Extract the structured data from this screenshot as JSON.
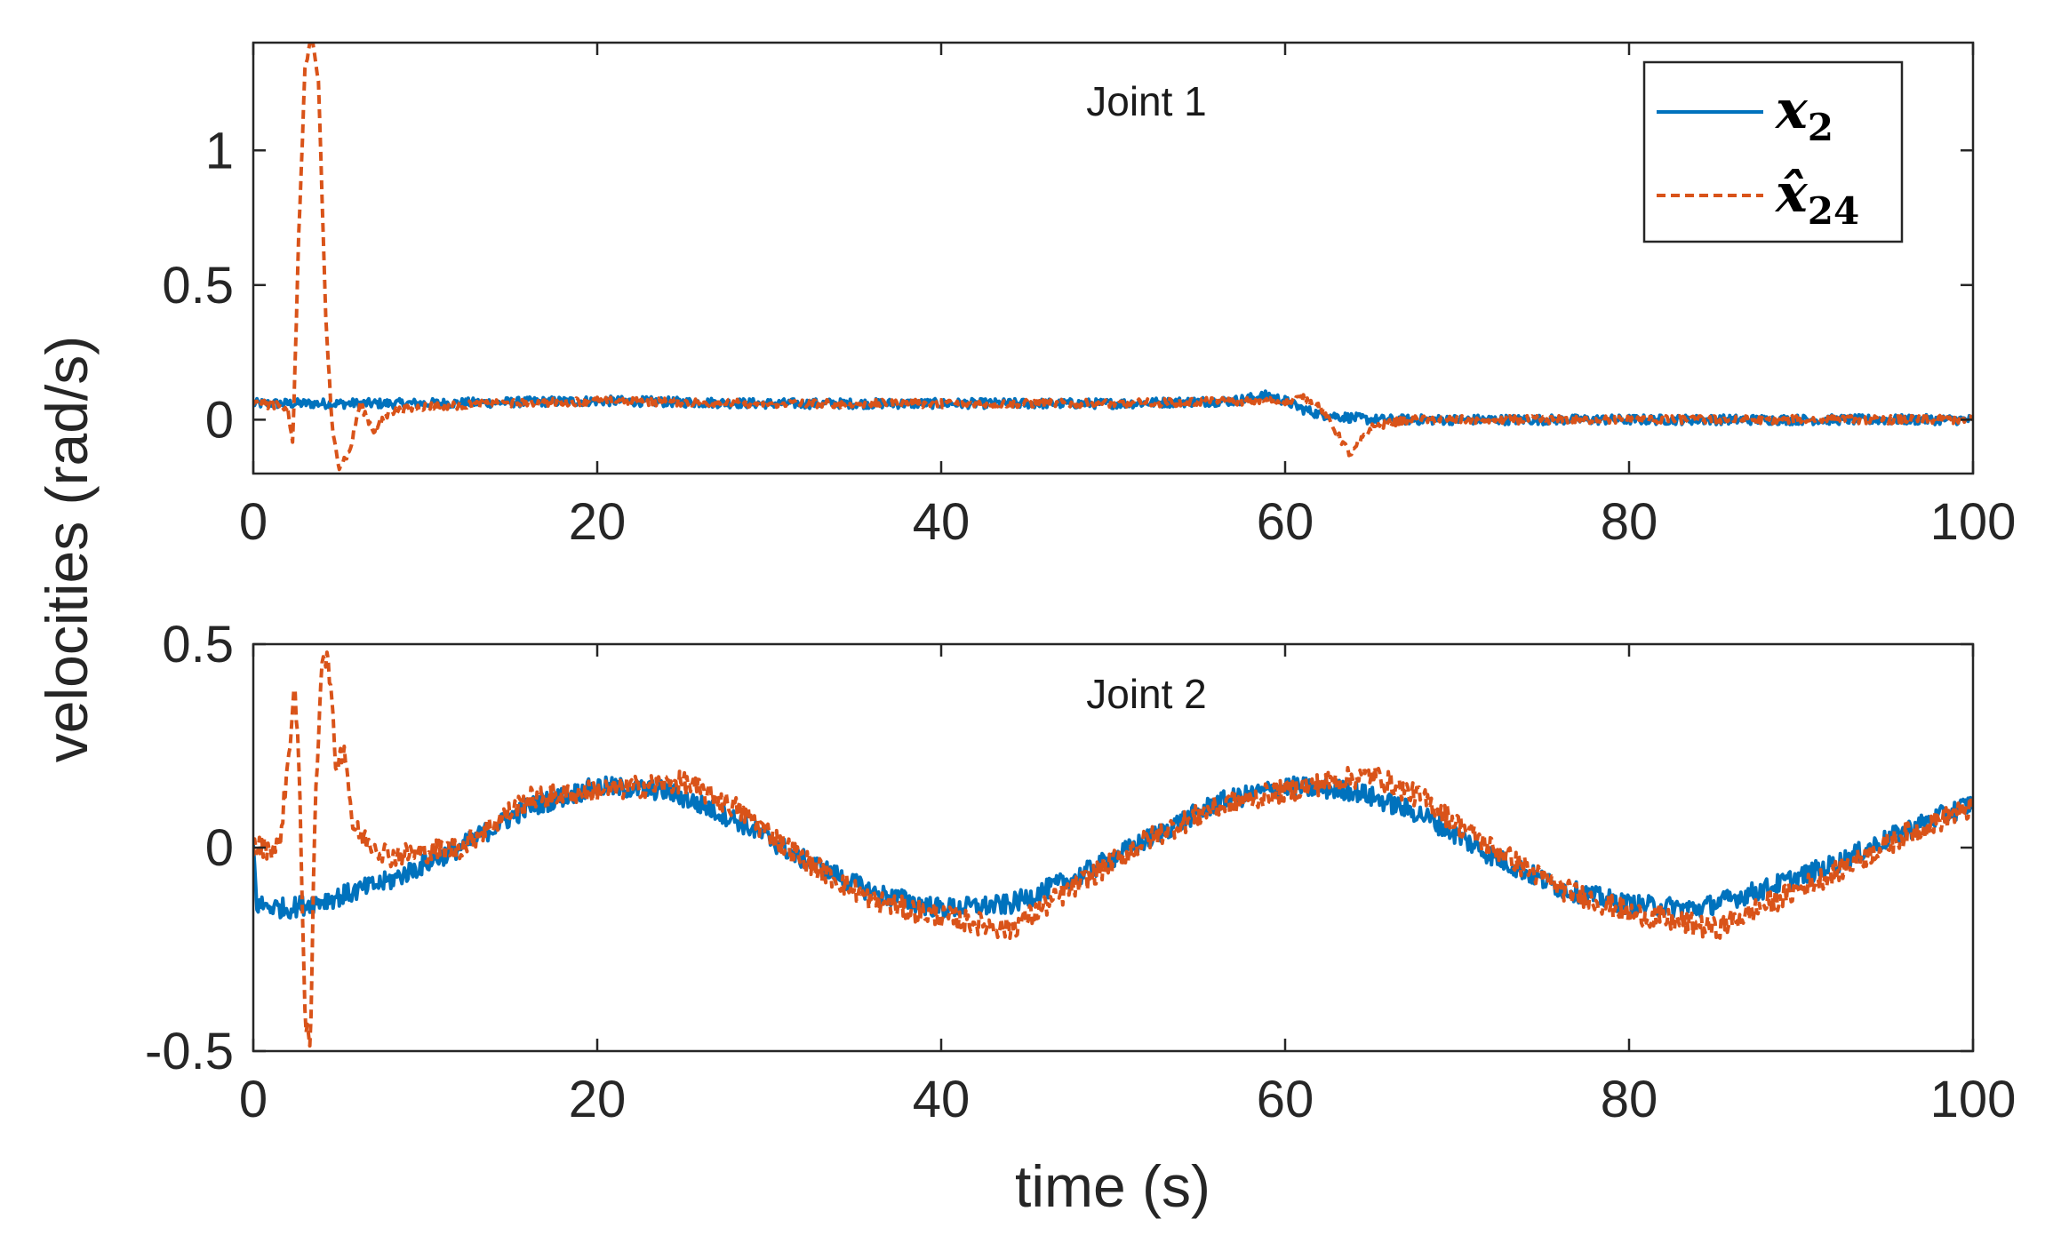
{
  "chart_data": [
    {
      "type": "line",
      "title": "Joint 1",
      "xlabel": "time (s)",
      "ylabel": "velocities (rad/s)",
      "xlim": [
        0,
        100
      ],
      "ylim": [
        -0.2,
        1.4
      ],
      "xticks": [
        0,
        20,
        40,
        60,
        80,
        100
      ],
      "xtick_labels": [
        "0",
        "20",
        "40",
        "60",
        "80",
        "100"
      ],
      "yticks": [
        0,
        0.5,
        1
      ],
      "ytick_labels": [
        "0",
        "0.5",
        "1"
      ],
      "legend": {
        "position": "top-right",
        "entries": [
          {
            "base": "x",
            "sub": "2",
            "series": "x2"
          },
          {
            "base": "x̂",
            "sub": "24",
            "series": "xhat24"
          }
        ]
      },
      "series": [
        {
          "name": "x2",
          "color": "#0072BD",
          "style": "solid",
          "noise": 0.018,
          "points": [
            [
              0,
              0.06
            ],
            [
              5,
              0.06
            ],
            [
              10,
              0.06
            ],
            [
              20,
              0.07
            ],
            [
              30,
              0.06
            ],
            [
              40,
              0.06
            ],
            [
              50,
              0.06
            ],
            [
              57,
              0.07
            ],
            [
              59,
              0.09
            ],
            [
              60,
              0.07
            ],
            [
              61,
              0.04
            ],
            [
              62,
              0.02
            ],
            [
              65,
              0.0
            ],
            [
              70,
              0.0
            ],
            [
              80,
              0.0
            ],
            [
              90,
              0.0
            ],
            [
              100,
              0.0
            ]
          ]
        },
        {
          "name": "xhat24",
          "color": "#D95319",
          "style": "dashed",
          "noise": 0.015,
          "points": [
            [
              0,
              0.06
            ],
            [
              2.0,
              0.05
            ],
            [
              2.3,
              -0.1
            ],
            [
              2.6,
              0.6
            ],
            [
              3.0,
              1.3
            ],
            [
              3.4,
              1.42
            ],
            [
              3.8,
              1.25
            ],
            [
              4.2,
              0.4
            ],
            [
              4.6,
              -0.05
            ],
            [
              5.0,
              -0.17
            ],
            [
              5.6,
              -0.12
            ],
            [
              6.2,
              0.06
            ],
            [
              7.0,
              -0.04
            ],
            [
              8.0,
              0.03
            ],
            [
              10,
              0.05
            ],
            [
              20,
              0.07
            ],
            [
              30,
              0.06
            ],
            [
              40,
              0.06
            ],
            [
              50,
              0.06
            ],
            [
              58,
              0.07
            ],
            [
              60,
              0.07
            ],
            [
              61,
              0.08
            ],
            [
              62,
              0.05
            ],
            [
              63,
              -0.05
            ],
            [
              63.8,
              -0.13
            ],
            [
              65,
              -0.03
            ],
            [
              67,
              0.0
            ],
            [
              70,
              0.0
            ],
            [
              80,
              0.0
            ],
            [
              90,
              0.0
            ],
            [
              100,
              0.0
            ]
          ]
        }
      ]
    },
    {
      "type": "line",
      "title": "Joint 2",
      "xlabel": "time (s)",
      "ylabel": "velocities (rad/s)",
      "xlim": [
        0,
        100
      ],
      "ylim": [
        -0.5,
        0.5
      ],
      "xticks": [
        0,
        20,
        40,
        60,
        80,
        100
      ],
      "xtick_labels": [
        "0",
        "20",
        "40",
        "60",
        "80",
        "100"
      ],
      "yticks": [
        -0.5,
        0,
        0.5
      ],
      "ytick_labels": [
        "-0.5",
        "0",
        "0.5"
      ],
      "series": [
        {
          "name": "x2",
          "color": "#0072BD",
          "style": "solid",
          "noise": 0.025,
          "points": [
            [
              0,
              0.0
            ],
            [
              0.2,
              -0.14
            ],
            [
              2,
              -0.15
            ],
            [
              5,
              -0.12
            ],
            [
              8,
              -0.08
            ],
            [
              12,
              0.0
            ],
            [
              16,
              0.1
            ],
            [
              20,
              0.15
            ],
            [
              24,
              0.14
            ],
            [
              28,
              0.07
            ],
            [
              32,
              -0.03
            ],
            [
              36,
              -0.11
            ],
            [
              40,
              -0.15
            ],
            [
              44,
              -0.14
            ],
            [
              48,
              -0.07
            ],
            [
              52,
              0.02
            ],
            [
              56,
              0.11
            ],
            [
              60,
              0.15
            ],
            [
              64,
              0.14
            ],
            [
              68,
              0.08
            ],
            [
              72,
              -0.02
            ],
            [
              76,
              -0.1
            ],
            [
              80,
              -0.14
            ],
            [
              84,
              -0.15
            ],
            [
              88,
              -0.1
            ],
            [
              92,
              -0.04
            ],
            [
              96,
              0.04
            ],
            [
              100,
              0.11
            ]
          ]
        },
        {
          "name": "xhat24",
          "color": "#D95319",
          "style": "dashed",
          "noise": 0.028,
          "points": [
            [
              0,
              0.0
            ],
            [
              1.5,
              0.0
            ],
            [
              2.0,
              0.2
            ],
            [
              2.4,
              0.4
            ],
            [
              2.7,
              0.15
            ],
            [
              3.0,
              -0.4
            ],
            [
              3.3,
              -0.52
            ],
            [
              3.6,
              0.1
            ],
            [
              4.0,
              0.48
            ],
            [
              4.4,
              0.45
            ],
            [
              4.8,
              0.2
            ],
            [
              5.3,
              0.25
            ],
            [
              5.8,
              0.05
            ],
            [
              6.5,
              0.02
            ],
            [
              8,
              -0.02
            ],
            [
              12,
              0.0
            ],
            [
              16,
              0.12
            ],
            [
              20,
              0.14
            ],
            [
              25,
              0.16
            ],
            [
              28,
              0.1
            ],
            [
              32,
              -0.03
            ],
            [
              36,
              -0.13
            ],
            [
              40,
              -0.17
            ],
            [
              44,
              -0.2
            ],
            [
              48,
              -0.09
            ],
            [
              52,
              0.02
            ],
            [
              56,
              0.1
            ],
            [
              60,
              0.14
            ],
            [
              65,
              0.18
            ],
            [
              68,
              0.12
            ],
            [
              72,
              0.0
            ],
            [
              76,
              -0.1
            ],
            [
              80,
              -0.16
            ],
            [
              85,
              -0.2
            ],
            [
              88,
              -0.14
            ],
            [
              92,
              -0.06
            ],
            [
              96,
              0.03
            ],
            [
              100,
              0.1
            ]
          ]
        }
      ]
    }
  ]
}
